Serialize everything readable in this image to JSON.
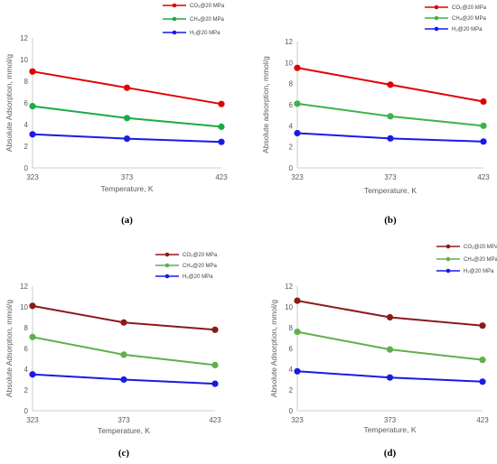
{
  "chart_data": [
    {
      "type": "line",
      "caption": "(a)",
      "x": [
        323,
        373,
        423
      ],
      "xticks": [
        "323",
        "373",
        "423"
      ],
      "yticks": [
        "0",
        "2",
        "4",
        "6",
        "8",
        "10",
        "12"
      ],
      "xlabel": "Temperature, K",
      "ylabel": "Absolute Adsorption, mmol/g",
      "xlim": [
        323,
        423
      ],
      "ylim": [
        0,
        12
      ],
      "grid": false,
      "legend": "top-right",
      "series": [
        {
          "name": "CO₂@20 MPa",
          "color": "#e00000",
          "values": [
            8.9,
            7.4,
            5.9
          ]
        },
        {
          "name": "CH₄@20 MPa",
          "color": "#1aab46",
          "values": [
            5.7,
            4.6,
            3.8
          ]
        },
        {
          "name": "H₂@20 MPa",
          "color": "#1a1ae6",
          "values": [
            3.1,
            2.7,
            2.4
          ]
        }
      ]
    },
    {
      "type": "line",
      "caption": "(b)",
      "x": [
        323,
        373,
        423
      ],
      "xticks": [
        "323",
        "373",
        "423"
      ],
      "yticks": [
        "0",
        "2",
        "4",
        "6",
        "8",
        "10",
        "12"
      ],
      "xlabel": "Temperature, K",
      "ylabel": "Absolute adsorption, mmol/g",
      "xlim": [
        323,
        423
      ],
      "ylim": [
        0,
        12
      ],
      "grid": false,
      "legend": "top-right",
      "series": [
        {
          "name": "CO₂@20 MPa",
          "color": "#e00000",
          "values": [
            9.5,
            7.9,
            6.3
          ]
        },
        {
          "name": "CH₄@20 MPa",
          "color": "#3cb44b",
          "values": [
            6.1,
            4.9,
            4.0
          ]
        },
        {
          "name": "H₂@20 MPa",
          "color": "#1a1ae6",
          "values": [
            3.3,
            2.8,
            2.5
          ]
        }
      ]
    },
    {
      "type": "line",
      "caption": "(c)",
      "x": [
        323,
        373,
        423
      ],
      "xticks": [
        "323",
        "373",
        "423"
      ],
      "yticks": [
        "0",
        "2",
        "4",
        "6",
        "8",
        "10",
        "12"
      ],
      "xlabel": "Temperature, K",
      "ylabel": "Absolute Adsorption, mmol/g",
      "xlim": [
        323,
        423
      ],
      "ylim": [
        0,
        12
      ],
      "grid": false,
      "legend": "top-right",
      "series": [
        {
          "name": "CO₂@20 MPa",
          "color": "#8b1a1a",
          "values": [
            10.1,
            8.5,
            7.8
          ]
        },
        {
          "name": "CH₄@20 MPa",
          "color": "#5fb04a",
          "values": [
            7.1,
            5.4,
            4.4
          ]
        },
        {
          "name": "H₂@20 MPa",
          "color": "#1a1ae6",
          "values": [
            3.5,
            3.0,
            2.6
          ]
        }
      ]
    },
    {
      "type": "line",
      "caption": "(d)",
      "x": [
        323,
        373,
        423
      ],
      "xticks": [
        "323",
        "373",
        "423"
      ],
      "yticks": [
        "0",
        "2",
        "4",
        "6",
        "8",
        "10",
        "12"
      ],
      "xlabel": "Temperature, K",
      "ylabel": "Absolute Adsorption, mmol/g",
      "xlim": [
        323,
        423
      ],
      "ylim": [
        0,
        12
      ],
      "grid": false,
      "legend": "top-right",
      "series": [
        {
          "name": "CO₂@20 MPa",
          "color": "#8b1a1a",
          "values": [
            10.6,
            9.0,
            8.2
          ]
        },
        {
          "name": "CH₄@20 MPa",
          "color": "#5fb04a",
          "values": [
            7.6,
            5.9,
            4.9
          ]
        },
        {
          "name": "H₂@20 MPa",
          "color": "#1a1ae6",
          "values": [
            3.8,
            3.2,
            2.8
          ]
        }
      ]
    }
  ]
}
